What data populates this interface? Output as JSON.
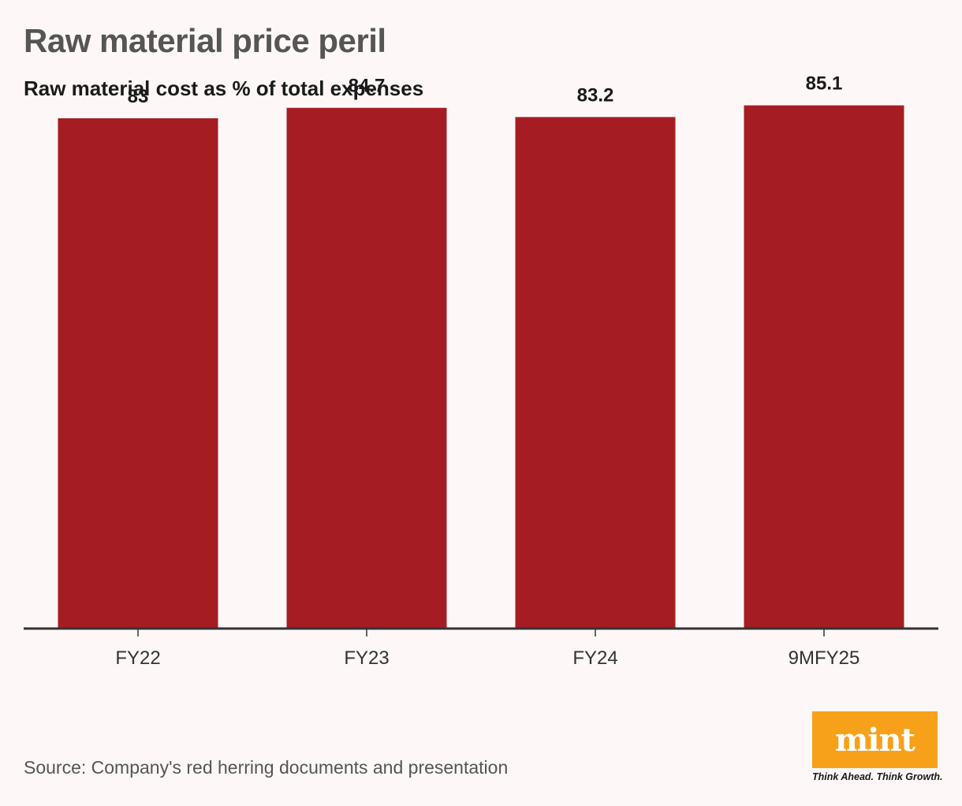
{
  "title": "Raw material price peril",
  "subtitle": "Raw material cost as % of total expenses",
  "chart_data": {
    "type": "bar",
    "title": "Raw material price peril",
    "subtitle": "Raw material cost as % of total expenses",
    "categories": [
      "FY22",
      "FY23",
      "FY24",
      "9MFY25"
    ],
    "values": [
      83,
      84.7,
      83.2,
      85.1
    ],
    "value_labels": [
      "83",
      "84.7",
      "83.2",
      "85.1"
    ],
    "xlabel": "",
    "ylabel": "",
    "ylim": [
      0,
      88
    ],
    "bar_color": "#a51d22",
    "grid": false
  },
  "source": "Source: Company's red herring documents and presentation",
  "logo": {
    "name": "mint",
    "tagline": "Think Ahead. Think Growth.",
    "color": "#f7a11a"
  }
}
